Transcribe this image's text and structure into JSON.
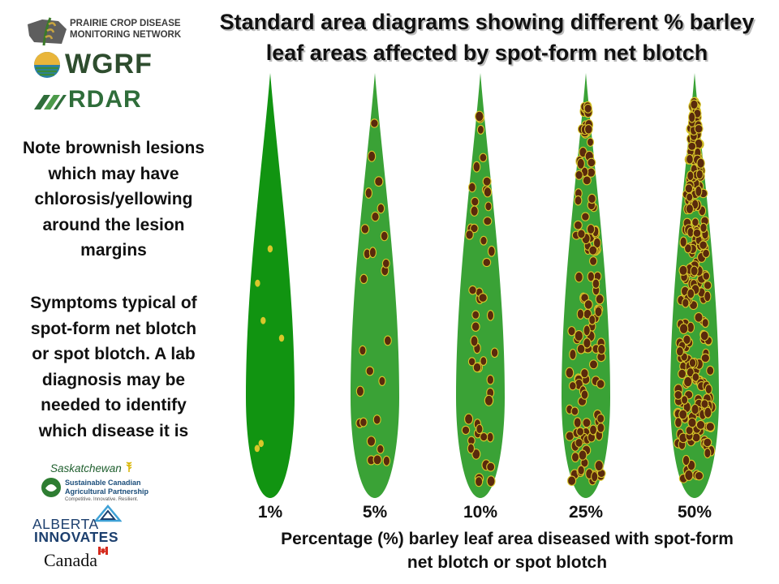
{
  "title": "Standard area diagrams showing different % barley leaf areas affected by spot-form net blotch",
  "logos": {
    "pcdmn_line1": "PRAIRIE CROP DISEASE",
    "pcdmn_line2": "MONITORING NETWORK",
    "wgrf": "WGRF",
    "rdar": "RDAR",
    "saskatchewan": "Saskatchewan",
    "scap_line1": "Sustainable Canadian",
    "scap_line2": "Agricultural Partnership",
    "scap_tagline": "Competitive. Innovative. Resilient.",
    "alberta_innovates_line1": "ALBERTA",
    "alberta_innovates_line2": "INNOVATES",
    "canada": "Canada"
  },
  "notes": {
    "note1": "Note brownish lesions\nwhich may have\nchlorosis/yellowing\naround the lesion\nmargins",
    "note2": "Symptoms typical of\nspot-form net blotch\nor spot blotch. A lab\ndiagnosis may be\nneeded to identify\nwhich disease it is"
  },
  "leaves": [
    {
      "label": "1%",
      "severity": 0.01,
      "leaf_color": "#119411"
    },
    {
      "label": "5%",
      "severity": 0.05,
      "leaf_color": "#3aa236"
    },
    {
      "label": "10%",
      "severity": 0.1,
      "leaf_color": "#3aa236"
    },
    {
      "label": "25%",
      "severity": 0.25,
      "leaf_color": "#3aa236"
    },
    {
      "label": "50%",
      "severity": 0.5,
      "leaf_color": "#3aa236"
    }
  ],
  "lesion_colors": {
    "fill": "#5a2a0c",
    "halo": "#d9c72a"
  },
  "caption": "Percentage (%) barley leaf area diseased with spot-form\nnet blotch or spot blotch"
}
